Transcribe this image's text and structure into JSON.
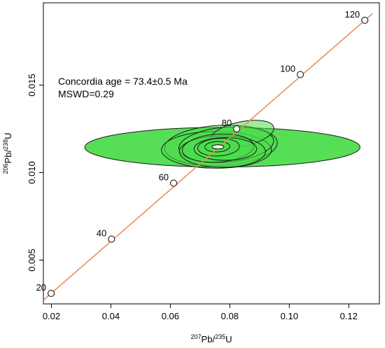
{
  "chart_data": {
    "type": "scatter",
    "title": "",
    "xlabel": {
      "sup1": "207",
      "base1": "Pb/",
      "sup2": "235",
      "base2": "U"
    },
    "ylabel": {
      "sup1": "206",
      "base1": "Pb/",
      "sup2": "238",
      "base2": "U"
    },
    "xlim": [
      0.0173,
      0.1303
    ],
    "ylim": [
      0.0025,
      0.0197
    ],
    "xticks": [
      0.02,
      0.04,
      0.06,
      0.08,
      0.1,
      0.12
    ],
    "xtick_labels": [
      "0.02",
      "0.04",
      "0.06",
      "0.08",
      "0.10",
      "0.12"
    ],
    "yticks": [
      0.005,
      0.01,
      0.015
    ],
    "ytick_labels": [
      "0.005",
      "0.010",
      "0.015"
    ],
    "annotations": {
      "age": "Concordia age = 73.4±0.5 Ma",
      "mswd": "MSWD=0.29"
    },
    "concordia": {
      "color": "#e8905a",
      "x_range": [
        0.0175,
        0.128
      ],
      "age_markers": [
        {
          "age": 20,
          "label": "20",
          "x": 0.0199,
          "y": 0.0031
        },
        {
          "age": 40,
          "label": "40",
          "x": 0.0402,
          "y": 0.0062
        },
        {
          "age": 60,
          "label": "60",
          "x": 0.0611,
          "y": 0.0094
        },
        {
          "age": 80,
          "label": "80",
          "x": 0.0823,
          "y": 0.0125
        },
        {
          "age": 100,
          "label": "100",
          "x": 0.1037,
          "y": 0.0156
        },
        {
          "age": 120,
          "label": "120",
          "x": 0.1254,
          "y": 0.0187
        }
      ]
    },
    "ellipse_color": "#4ddd4d",
    "ellipses": [
      {
        "cx": 0.0775,
        "cy": 0.01145,
        "rx": 0.0463,
        "ry": 0.00113,
        "angle": 0.0
      },
      {
        "cx": 0.077,
        "cy": 0.01155,
        "rx": 0.019,
        "ry": 0.00115,
        "angle": 0.3
      },
      {
        "cx": 0.0755,
        "cy": 0.0113,
        "rx": 0.0185,
        "ry": 0.00105,
        "angle": 0.0
      },
      {
        "cx": 0.0788,
        "cy": 0.0116,
        "rx": 0.016,
        "ry": 0.001,
        "angle": 0.5
      },
      {
        "cx": 0.084,
        "cy": 0.0122,
        "rx": 0.011,
        "ry": 0.0007,
        "angle": 1.2
      },
      {
        "cx": 0.0775,
        "cy": 0.0112,
        "rx": 0.0145,
        "ry": 0.0009,
        "angle": 0.0
      },
      {
        "cx": 0.076,
        "cy": 0.0114,
        "rx": 0.012,
        "ry": 0.0008,
        "angle": 0.4
      },
      {
        "cx": 0.0785,
        "cy": 0.01135,
        "rx": 0.0105,
        "ry": 0.00065,
        "angle": 0.0
      },
      {
        "cx": 0.0762,
        "cy": 0.01145,
        "rx": 0.007,
        "ry": 0.0005,
        "angle": 0.3
      },
      {
        "cx": 0.0758,
        "cy": 0.01148,
        "rx": 0.0042,
        "ry": 0.0003,
        "angle": 0.2
      }
    ],
    "concordia_age_point": {
      "x": 0.076,
      "y": 0.01147,
      "rx": 0.002,
      "ry": 0.00012
    }
  }
}
